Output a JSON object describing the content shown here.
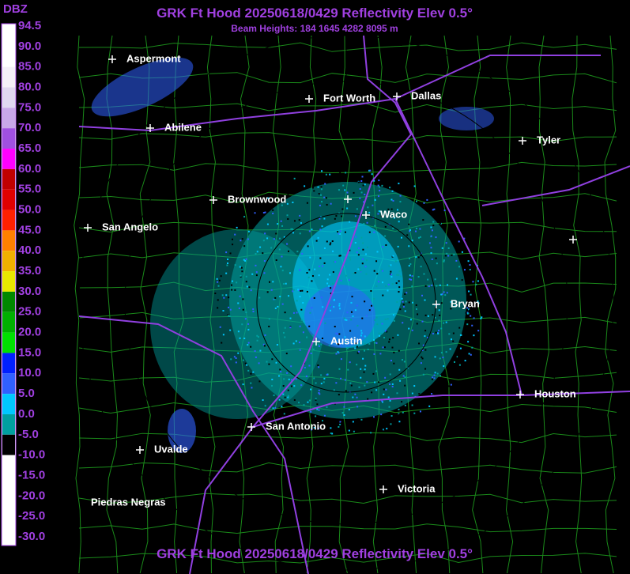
{
  "header": {
    "title": "GRK Ft Hood 20250618/0429 Reflectivity Elev 0.5°",
    "subtitle": "Beam Heights: 184 1645 4282 8095 m"
  },
  "footer": {
    "title": "GRK Ft Hood 20250618/0429 Reflectivity Elev 0.5°"
  },
  "legend": {
    "title": "DBZ",
    "labels": [
      "94.5",
      "90.0",
      "85.0",
      "80.0",
      "75.0",
      "70.0",
      "65.0",
      "60.0",
      "55.0",
      "50.0",
      "45.0",
      "40.0",
      "35.0",
      "30.0",
      "25.0",
      "20.0",
      "15.0",
      "10.0",
      "5.0",
      "0.0",
      "-5.0",
      "-10.0",
      "-15.0",
      "-20.0",
      "-25.0",
      "-30.0"
    ],
    "colors": [
      "#ffffff",
      "#ffffff",
      "#f4f0f8",
      "#e0d8f0",
      "#c8a8e8",
      "#a050e0",
      "#ff00ff",
      "#c00000",
      "#e00000",
      "#ff2000",
      "#ff8000",
      "#f0b000",
      "#e8e800",
      "#008800",
      "#00b000",
      "#00e000",
      "#0020ff",
      "#3060ff",
      "#00c8ff",
      "#00a0a0",
      "#000000",
      "#ffffff",
      "#ffffff",
      "#ffffff",
      "#ffffff"
    ]
  },
  "cities": [
    "Aspermont",
    "Fort Worth",
    "Dallas",
    "Abilene",
    "Tyler",
    "Brownwood",
    "Waco",
    "San Angelo",
    "Bryan",
    "Austin",
    "Houston",
    "San Antonio",
    "Uvalde",
    "Victoria",
    "Piedras Negras"
  ]
}
